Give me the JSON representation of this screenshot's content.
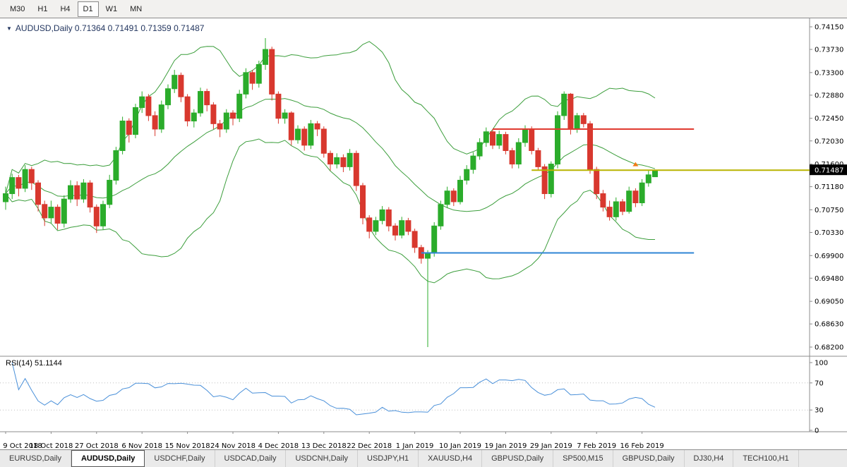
{
  "toolbar": {
    "timeframes": [
      {
        "label": "M30",
        "active": false
      },
      {
        "label": "H1",
        "active": false
      },
      {
        "label": "H4",
        "active": false
      },
      {
        "label": "D1",
        "active": true
      },
      {
        "label": "W1",
        "active": false
      },
      {
        "label": "MN",
        "active": false
      }
    ]
  },
  "chart": {
    "collapse_icon": "▼",
    "title_text": "AUDUSD,Daily 0.71364 0.71491 0.71359 0.71487",
    "rsi_label": "RSI(14) 51.1144",
    "price_badge": "0.71487"
  },
  "chart_data": {
    "type": "candlestick",
    "symbol": "AUDUSD",
    "timeframe": "Daily",
    "ohlc_current": {
      "open": 0.71364,
      "high": 0.71491,
      "low": 0.71359,
      "close": 0.71487
    },
    "ylim": [
      0.682,
      0.7415
    ],
    "y_ticks": [
      "0.74150",
      "0.73730",
      "0.73300",
      "0.72880",
      "0.72450",
      "0.72030",
      "0.71600",
      "0.71180",
      "0.70750",
      "0.70330",
      "0.69900",
      "0.69480",
      "0.69050",
      "0.68630",
      "0.68200"
    ],
    "x_ticks": [
      {
        "label": "9 Oct 2018",
        "index": 0
      },
      {
        "label": "18 Oct 2018",
        "index": 7
      },
      {
        "label": "27 Oct 2018",
        "index": 14
      },
      {
        "label": "6 Nov 2018",
        "index": 21
      },
      {
        "label": "15 Nov 2018",
        "index": 28
      },
      {
        "label": "24 Nov 2018",
        "index": 35
      },
      {
        "label": "4 Dec 2018",
        "index": 42
      },
      {
        "label": "13 Dec 2018",
        "index": 49
      },
      {
        "label": "22 Dec 2018",
        "index": 56
      },
      {
        "label": "1 Jan 2019",
        "index": 63
      },
      {
        "label": "10 Jan 2019",
        "index": 70
      },
      {
        "label": "19 Jan 2019",
        "index": 77
      },
      {
        "label": "29 Jan 2019",
        "index": 84
      },
      {
        "label": "7 Feb 2019",
        "index": 91
      },
      {
        "label": "16 Feb 2019",
        "index": 98
      }
    ],
    "colors": {
      "bull": "#2bac2b",
      "bear": "#d8382e",
      "bollinger": "#3c9e3c",
      "rsi": "#4a90d9"
    },
    "overlays": {
      "bollinger": {
        "period": 20,
        "deviation": 2
      }
    },
    "hlines": [
      {
        "name": "resistance-line",
        "price": 0.7225,
        "color": "#e03a30",
        "from_index": 75,
        "to": 106
      },
      {
        "name": "current-level-line",
        "price": 0.71487,
        "color": "#b8b400",
        "from_index": 81,
        "to": "axis"
      },
      {
        "name": "support-line",
        "price": 0.6995,
        "color": "#2f86d5",
        "from_index": 64,
        "to": 106
      }
    ],
    "marker": {
      "index": 97,
      "price": 0.7156,
      "color": "#f07b16",
      "shape": "up-arrow"
    },
    "indicator": {
      "name": "RSI",
      "period": 14,
      "value": 51.1144,
      "range": [
        0,
        100
      ],
      "scale_labels": [
        "100",
        "70",
        "30",
        "0"
      ],
      "levels": [
        70,
        30
      ]
    },
    "candles": [
      [
        0.709,
        0.7118,
        0.7075,
        0.7105
      ],
      [
        0.7105,
        0.7142,
        0.7095,
        0.7135
      ],
      [
        0.7135,
        0.714,
        0.71,
        0.7115
      ],
      [
        0.7115,
        0.7158,
        0.7108,
        0.715
      ],
      [
        0.715,
        0.7155,
        0.7112,
        0.7125
      ],
      [
        0.7125,
        0.713,
        0.7072,
        0.7085
      ],
      [
        0.7085,
        0.7092,
        0.7045,
        0.706
      ],
      [
        0.706,
        0.7092,
        0.705,
        0.708
      ],
      [
        0.708,
        0.7085,
        0.7038,
        0.705
      ],
      [
        0.705,
        0.7102,
        0.7042,
        0.7095
      ],
      [
        0.7095,
        0.713,
        0.7088,
        0.712
      ],
      [
        0.712,
        0.7128,
        0.7082,
        0.7095
      ],
      [
        0.7095,
        0.7132,
        0.7088,
        0.7125
      ],
      [
        0.7125,
        0.713,
        0.707,
        0.708
      ],
      [
        0.708,
        0.7085,
        0.7032,
        0.7045
      ],
      [
        0.7045,
        0.7092,
        0.7038,
        0.7085
      ],
      [
        0.7085,
        0.714,
        0.7078,
        0.713
      ],
      [
        0.713,
        0.7192,
        0.7122,
        0.7185
      ],
      [
        0.7185,
        0.7248,
        0.7178,
        0.724
      ],
      [
        0.724,
        0.7245,
        0.72,
        0.7215
      ],
      [
        0.7215,
        0.7272,
        0.7208,
        0.7265
      ],
      [
        0.7265,
        0.7295,
        0.7255,
        0.7285
      ],
      [
        0.7285,
        0.729,
        0.724,
        0.725
      ],
      [
        0.725,
        0.7258,
        0.7212,
        0.7225
      ],
      [
        0.7225,
        0.7278,
        0.7218,
        0.727
      ],
      [
        0.727,
        0.7308,
        0.7262,
        0.73
      ],
      [
        0.73,
        0.7335,
        0.7292,
        0.7325
      ],
      [
        0.7325,
        0.733,
        0.7275,
        0.7285
      ],
      [
        0.7285,
        0.729,
        0.723,
        0.724
      ],
      [
        0.724,
        0.7262,
        0.7228,
        0.7255
      ],
      [
        0.7255,
        0.7302,
        0.7248,
        0.7295
      ],
      [
        0.7295,
        0.73,
        0.7258,
        0.727
      ],
      [
        0.727,
        0.7275,
        0.7225,
        0.7235
      ],
      [
        0.7235,
        0.7242,
        0.721,
        0.7225
      ],
      [
        0.7225,
        0.7262,
        0.7218,
        0.7255
      ],
      [
        0.7255,
        0.726,
        0.7232,
        0.7245
      ],
      [
        0.7245,
        0.7298,
        0.7238,
        0.729
      ],
      [
        0.729,
        0.7338,
        0.7282,
        0.733
      ],
      [
        0.733,
        0.7335,
        0.7298,
        0.731
      ],
      [
        0.731,
        0.7352,
        0.7302,
        0.7345
      ],
      [
        0.7345,
        0.7394,
        0.7335,
        0.7373
      ],
      [
        0.7373,
        0.7378,
        0.7278,
        0.729
      ],
      [
        0.729,
        0.7295,
        0.7235,
        0.7245
      ],
      [
        0.7245,
        0.7262,
        0.7235,
        0.7255
      ],
      [
        0.7255,
        0.7258,
        0.7195,
        0.7205
      ],
      [
        0.7205,
        0.7232,
        0.7198,
        0.7225
      ],
      [
        0.7225,
        0.723,
        0.7185,
        0.7195
      ],
      [
        0.7195,
        0.7242,
        0.7188,
        0.7235
      ],
      [
        0.7235,
        0.724,
        0.7212,
        0.7225
      ],
      [
        0.7225,
        0.723,
        0.7172,
        0.718
      ],
      [
        0.718,
        0.7185,
        0.7148,
        0.716
      ],
      [
        0.716,
        0.718,
        0.7152,
        0.7172
      ],
      [
        0.7172,
        0.7178,
        0.7145,
        0.7155
      ],
      [
        0.7155,
        0.7188,
        0.7148,
        0.718
      ],
      [
        0.718,
        0.7185,
        0.711,
        0.712
      ],
      [
        0.712,
        0.7125,
        0.7048,
        0.706
      ],
      [
        0.706,
        0.7065,
        0.7022,
        0.7035
      ],
      [
        0.7035,
        0.7062,
        0.7028,
        0.7055
      ],
      [
        0.7055,
        0.7082,
        0.7048,
        0.7075
      ],
      [
        0.7075,
        0.708,
        0.7035,
        0.7045
      ],
      [
        0.7045,
        0.705,
        0.7018,
        0.7028
      ],
      [
        0.7028,
        0.7062,
        0.7022,
        0.7055
      ],
      [
        0.7055,
        0.706,
        0.7028,
        0.7035
      ],
      [
        0.7035,
        0.704,
        0.6995,
        0.7005
      ],
      [
        0.7005,
        0.701,
        0.6975,
        0.6985
      ],
      [
        0.6985,
        0.7,
        0.682,
        0.6995
      ],
      [
        0.6995,
        0.7052,
        0.6988,
        0.7045
      ],
      [
        0.7045,
        0.7092,
        0.7038,
        0.7085
      ],
      [
        0.7085,
        0.7118,
        0.7078,
        0.711
      ],
      [
        0.711,
        0.7115,
        0.7082,
        0.709
      ],
      [
        0.709,
        0.7138,
        0.7085,
        0.713
      ],
      [
        0.713,
        0.7158,
        0.7122,
        0.715
      ],
      [
        0.715,
        0.7182,
        0.7142,
        0.7175
      ],
      [
        0.7175,
        0.7208,
        0.7168,
        0.72
      ],
      [
        0.72,
        0.7228,
        0.7192,
        0.722
      ],
      [
        0.722,
        0.7225,
        0.7188,
        0.7195
      ],
      [
        0.7195,
        0.7222,
        0.7188,
        0.7215
      ],
      [
        0.7215,
        0.722,
        0.7178,
        0.7185
      ],
      [
        0.7185,
        0.719,
        0.7152,
        0.716
      ],
      [
        0.716,
        0.7208,
        0.7152,
        0.72
      ],
      [
        0.72,
        0.7232,
        0.7192,
        0.7225
      ],
      [
        0.7225,
        0.723,
        0.7178,
        0.7185
      ],
      [
        0.7185,
        0.719,
        0.7148,
        0.7155
      ],
      [
        0.7155,
        0.716,
        0.7095,
        0.7105
      ],
      [
        0.7105,
        0.7165,
        0.7098,
        0.716
      ],
      [
        0.716,
        0.7258,
        0.7152,
        0.725
      ],
      [
        0.725,
        0.7295,
        0.7242,
        0.729
      ],
      [
        0.729,
        0.7292,
        0.7215,
        0.7225
      ],
      [
        0.7225,
        0.7255,
        0.7218,
        0.725
      ],
      [
        0.725,
        0.7255,
        0.7228,
        0.7235
      ],
      [
        0.7235,
        0.724,
        0.7142,
        0.715
      ],
      [
        0.715,
        0.7155,
        0.7095,
        0.7105
      ],
      [
        0.7105,
        0.7112,
        0.7072,
        0.708
      ],
      [
        0.708,
        0.7092,
        0.7055,
        0.7062
      ],
      [
        0.7062,
        0.7098,
        0.7055,
        0.709
      ],
      [
        0.709,
        0.7095,
        0.7065,
        0.7072
      ],
      [
        0.7072,
        0.7118,
        0.7068,
        0.711
      ],
      [
        0.711,
        0.7115,
        0.708,
        0.7088
      ],
      [
        0.7088,
        0.7132,
        0.7082,
        0.7125
      ],
      [
        0.7125,
        0.7148,
        0.7118,
        0.714
      ],
      [
        0.71364,
        0.71491,
        0.71359,
        0.71487
      ]
    ]
  },
  "tabs": [
    {
      "label": "EURUSD,Daily",
      "active": false
    },
    {
      "label": "AUDUSD,Daily",
      "active": true
    },
    {
      "label": "USDCHF,Daily",
      "active": false
    },
    {
      "label": "USDCAD,Daily",
      "active": false
    },
    {
      "label": "USDCNH,Daily",
      "active": false
    },
    {
      "label": "USDJPY,H1",
      "active": false
    },
    {
      "label": "XAUUSD,H4",
      "active": false
    },
    {
      "label": "GBPUSD,Daily",
      "active": false
    },
    {
      "label": "SP500,M15",
      "active": false
    },
    {
      "label": "GBPUSD,Daily",
      "active": false
    },
    {
      "label": "DJ30,H4",
      "active": false
    },
    {
      "label": "TECH100,H1",
      "active": false
    }
  ]
}
